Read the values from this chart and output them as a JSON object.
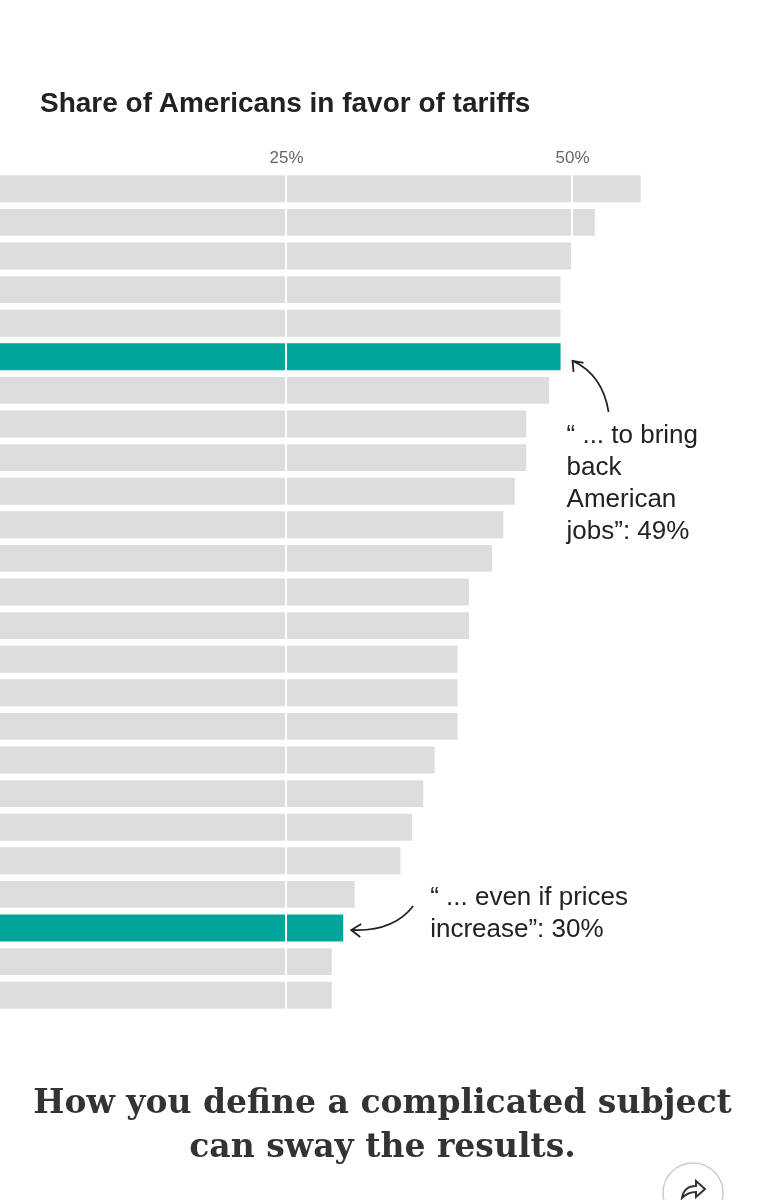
{
  "chart_data": {
    "type": "bar",
    "orientation": "horizontal",
    "title": "Share of Americans in favor of tariffs",
    "subtitle": "How you define a complicated subject can sway the results.",
    "categories": [
      null,
      null,
      null,
      null,
      null,
      null,
      null,
      null,
      null,
      null,
      null,
      null,
      null,
      null,
      null,
      null,
      null,
      null,
      null,
      null,
      null,
      null,
      null,
      null,
      null
    ],
    "values": [
      56,
      52,
      50,
      49,
      49,
      49,
      48,
      46,
      46,
      45,
      44,
      43,
      41,
      41,
      40,
      40,
      40,
      38,
      37,
      36,
      35,
      31,
      30,
      29,
      29
    ],
    "colors": [
      "#dddddd",
      "#dddddd",
      "#dddddd",
      "#dddddd",
      "#dddddd",
      "#00a69a",
      "#dddddd",
      "#dddddd",
      "#dddddd",
      "#dddddd",
      "#dddddd",
      "#dddddd",
      "#dddddd",
      "#dddddd",
      "#dddddd",
      "#dddddd",
      "#dddddd",
      "#dddddd",
      "#dddddd",
      "#dddddd",
      "#dddddd",
      "#dddddd",
      "#00a69a",
      "#dddddd",
      "#dddddd"
    ],
    "xlim": [
      0,
      65
    ],
    "xticks": [
      {
        "value": 25,
        "label": "25%"
      },
      {
        "value": 50,
        "label": "50%"
      }
    ],
    "grid": "x",
    "annotations": [
      "“ ... to bring back American jobs”: 49%",
      "“ ... even if prices increase”: 30%"
    ]
  }
}
